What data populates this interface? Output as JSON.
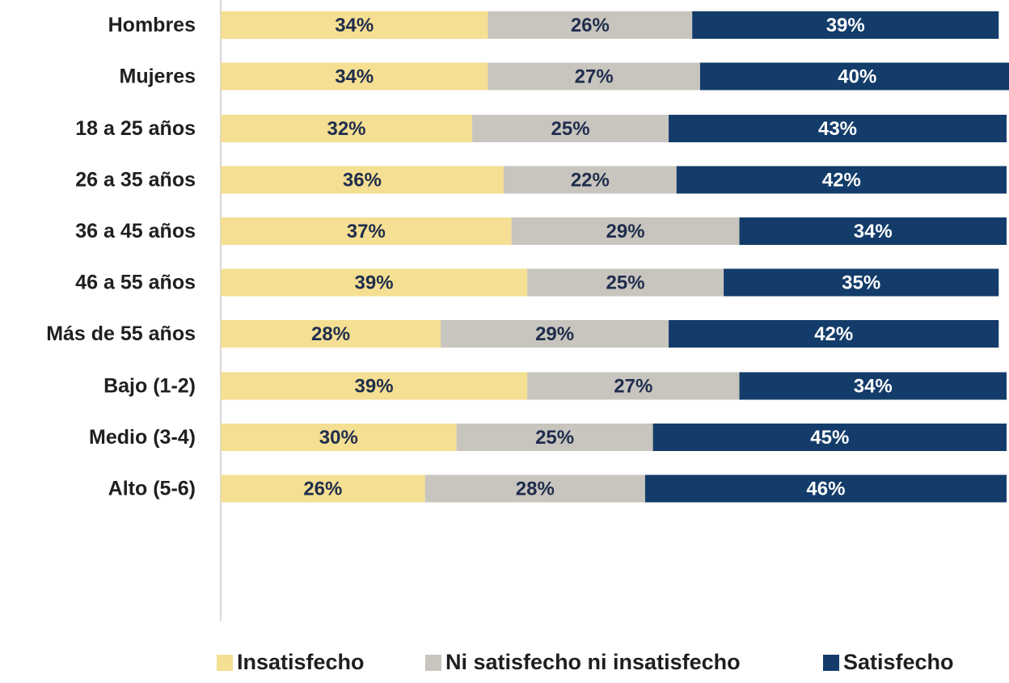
{
  "chart_data": {
    "type": "bar",
    "orientation": "horizontal",
    "stacked": true,
    "categories": [
      "Hombres",
      "Mujeres",
      "18 a 25 años",
      "26 a 35 años",
      "36 a 45 años",
      "46 a 55 años",
      "Más de 55 años",
      "Bajo (1-2)",
      "Medio (3-4)",
      "Alto (5-6)"
    ],
    "groups": [
      [
        "Hombres",
        "Mujeres"
      ],
      [
        "18 a 25 años",
        "26 a 35 años",
        "36 a 45 años",
        "46 a 55 años",
        "Más de 55 años"
      ],
      [
        "Bajo (1-2)",
        "Medio (3-4)",
        "Alto (5-6)"
      ]
    ],
    "series": [
      {
        "name": "Insatisfecho",
        "color": "#f5df92",
        "label_color": "#1f2d4d",
        "values": [
          34,
          34,
          32,
          36,
          37,
          39,
          28,
          39,
          30,
          26
        ]
      },
      {
        "name": "Ni satisfecho ni insatisfecho",
        "color": "#c8c5be",
        "label_color": "#1f2d4d",
        "values": [
          26,
          27,
          25,
          22,
          29,
          25,
          29,
          27,
          25,
          28
        ]
      },
      {
        "name": "Satisfecho",
        "color": "#133c6a",
        "label_color": "#ffffff",
        "values": [
          39,
          40,
          43,
          42,
          34,
          35,
          42,
          34,
          45,
          46
        ]
      }
    ],
    "value_suffix": "%",
    "xlim": [
      0,
      100
    ],
    "legend_position": "bottom",
    "grid": false,
    "title": "",
    "xlabel": "",
    "ylabel": ""
  }
}
